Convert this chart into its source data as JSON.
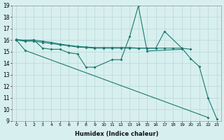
{
  "xlabel": "Humidex (Indice chaleur)",
  "xlim_min": -0.5,
  "xlim_max": 23.5,
  "ylim_min": 9,
  "ylim_max": 19,
  "bg_color": "#d8efef",
  "grid_color": "#b8d8d8",
  "line_color": "#1a7a70",
  "line_width": 0.8,
  "marker_size": 2.0,
  "lines": [
    {
      "x": [
        0,
        1,
        22
      ],
      "y": [
        16.0,
        15.1,
        9.3
      ]
    },
    {
      "x": [
        0,
        2,
        3,
        4,
        5,
        6,
        7,
        8,
        9,
        11,
        12,
        13,
        14,
        15,
        19
      ],
      "y": [
        16.0,
        16.0,
        15.3,
        15.2,
        15.2,
        14.9,
        14.8,
        13.65,
        13.65,
        14.3,
        14.3,
        16.3,
        18.95,
        15.05,
        15.2
      ]
    },
    {
      "x": [
        0,
        1,
        2,
        3,
        4,
        5,
        6,
        7,
        8,
        9,
        10,
        11,
        12,
        13,
        14,
        15,
        16,
        17,
        18,
        19,
        20
      ],
      "y": [
        16.0,
        15.9,
        15.9,
        15.8,
        15.7,
        15.6,
        15.5,
        15.4,
        15.35,
        15.3,
        15.3,
        15.3,
        15.3,
        15.3,
        15.3,
        15.3,
        15.3,
        15.3,
        15.3,
        15.3,
        15.2
      ]
    },
    {
      "x": [
        0,
        1,
        2,
        3,
        4,
        5,
        6,
        7,
        8,
        9,
        10,
        11,
        12,
        13,
        14,
        15,
        16,
        17,
        19,
        20,
        21,
        22,
        23
      ],
      "y": [
        16.05,
        15.95,
        16.0,
        15.9,
        15.8,
        15.65,
        15.55,
        15.45,
        15.4,
        15.35,
        15.35,
        15.35,
        15.35,
        15.35,
        15.3,
        15.3,
        15.3,
        16.75,
        15.3,
        14.4,
        13.7,
        11.0,
        9.2
      ]
    }
  ],
  "xtick_fontsize": 4.5,
  "ytick_fontsize": 5.5,
  "xlabel_fontsize": 6.0
}
